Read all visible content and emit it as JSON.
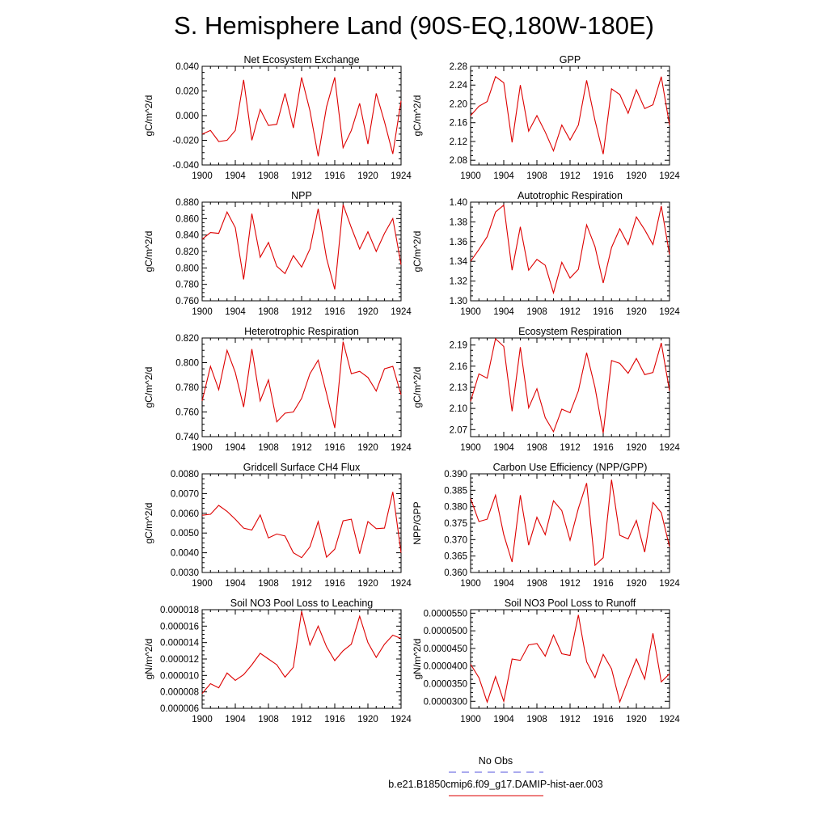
{
  "title": "S. Hemisphere Land (90S-EQ,180W-180E)",
  "x": [
    1900,
    1901,
    1902,
    1903,
    1904,
    1905,
    1906,
    1907,
    1908,
    1909,
    1910,
    1911,
    1912,
    1913,
    1914,
    1915,
    1916,
    1917,
    1918,
    1919,
    1920,
    1921,
    1922,
    1923,
    1924
  ],
  "xticks": [
    "1900",
    "1904",
    "1908",
    "1912",
    "1916",
    "1920",
    "1924"
  ],
  "legend": {
    "entries": [
      {
        "label": "No Obs",
        "color": "#5555dd",
        "dash": "dashed"
      },
      {
        "label": "b.e21.B1850cmip6.f09_g17.DAMIP-hist-aer.003",
        "color": "#dd0000",
        "dash": "solid"
      }
    ]
  },
  "colors": {
    "series": "#dd0000",
    "obs": "#5555dd"
  },
  "chart_data": [
    {
      "type": "line",
      "title": "Net Ecosystem Exchange",
      "ylabel": "gC/m^2/d",
      "xlim": [
        1900,
        1924
      ],
      "ylim": [
        -0.04,
        0.04
      ],
      "yticks": [
        "0.040",
        "0.020",
        "0.000",
        "-0.020",
        "-0.040"
      ],
      "ytick_values": [
        0.04,
        0.02,
        0,
        -0.02,
        -0.04
      ],
      "series": [
        {
          "values": [
            -0.015,
            -0.012,
            -0.021,
            -0.02,
            -0.012,
            0.029,
            -0.02,
            0.005,
            -0.008,
            -0.007,
            0.018,
            -0.01,
            0.031,
            0.004,
            -0.033,
            0.007,
            0.031,
            -0.026,
            -0.012,
            0.01,
            -0.023,
            0.018,
            -0.005,
            -0.031,
            0.012
          ]
        }
      ]
    },
    {
      "type": "line",
      "title": "GPP",
      "ylabel": "gC/m^2/d",
      "xlim": [
        1900,
        1924
      ],
      "ylim": [
        2.07,
        2.28
      ],
      "yticks": [
        "2.28",
        "2.24",
        "2.20",
        "2.16",
        "2.12",
        "2.08"
      ],
      "ytick_values": [
        2.28,
        2.24,
        2.2,
        2.16,
        2.12,
        2.08
      ],
      "series": [
        {
          "values": [
            2.175,
            2.195,
            2.205,
            2.258,
            2.245,
            2.118,
            2.24,
            2.142,
            2.175,
            2.14,
            2.1,
            2.155,
            2.123,
            2.155,
            2.25,
            2.165,
            2.093,
            2.232,
            2.22,
            2.18,
            2.23,
            2.19,
            2.198,
            2.258,
            2.155
          ]
        }
      ]
    },
    {
      "type": "line",
      "title": "NPP",
      "ylabel": "gC/m^2/d",
      "xlim": [
        1900,
        1924
      ],
      "ylim": [
        0.76,
        0.88
      ],
      "yticks": [
        "0.880",
        "0.860",
        "0.840",
        "0.820",
        "0.800",
        "0.780",
        "0.760"
      ],
      "ytick_values": [
        0.88,
        0.86,
        0.84,
        0.82,
        0.8,
        0.78,
        0.76
      ],
      "series": [
        {
          "values": [
            0.835,
            0.843,
            0.842,
            0.868,
            0.849,
            0.786,
            0.866,
            0.813,
            0.831,
            0.802,
            0.793,
            0.815,
            0.801,
            0.823,
            0.872,
            0.812,
            0.774,
            0.877,
            0.849,
            0.823,
            0.844,
            0.82,
            0.842,
            0.86,
            0.804
          ]
        }
      ]
    },
    {
      "type": "line",
      "title": "Autotrophic Respiration",
      "ylabel": "gC/m^2/d",
      "xlim": [
        1900,
        1924
      ],
      "ylim": [
        1.3,
        1.4
      ],
      "yticks": [
        "1.40",
        "1.38",
        "1.36",
        "1.34",
        "1.32",
        "1.30"
      ],
      "ytick_values": [
        1.4,
        1.38,
        1.36,
        1.34,
        1.32,
        1.3
      ],
      "series": [
        {
          "values": [
            1.34,
            1.352,
            1.365,
            1.39,
            1.397,
            1.331,
            1.375,
            1.331,
            1.342,
            1.336,
            1.308,
            1.339,
            1.323,
            1.332,
            1.377,
            1.355,
            1.318,
            1.354,
            1.373,
            1.357,
            1.385,
            1.372,
            1.357,
            1.396,
            1.347
          ]
        }
      ]
    },
    {
      "type": "line",
      "title": "Heterotrophic Respiration",
      "ylabel": "gC/m^2/d",
      "xlim": [
        1900,
        1924
      ],
      "ylim": [
        0.74,
        0.82
      ],
      "yticks": [
        "0.820",
        "0.800",
        "0.780",
        "0.760",
        "0.740"
      ],
      "ytick_values": [
        0.82,
        0.8,
        0.78,
        0.76,
        0.74
      ],
      "series": [
        {
          "values": [
            0.769,
            0.797,
            0.778,
            0.81,
            0.792,
            0.764,
            0.811,
            0.769,
            0.786,
            0.752,
            0.759,
            0.76,
            0.771,
            0.791,
            0.802,
            0.775,
            0.747,
            0.817,
            0.791,
            0.793,
            0.788,
            0.777,
            0.795,
            0.797,
            0.774
          ]
        }
      ]
    },
    {
      "type": "line",
      "title": "Ecosystem Respiration",
      "ylabel": "gC/m^2/d",
      "xlim": [
        1900,
        1924
      ],
      "ylim": [
        2.06,
        2.2
      ],
      "yticks": [
        "2.19",
        "2.16",
        "2.13",
        "2.10",
        "2.07"
      ],
      "ytick_values": [
        2.19,
        2.16,
        2.13,
        2.1,
        2.07
      ],
      "series": [
        {
          "values": [
            2.11,
            2.149,
            2.143,
            2.199,
            2.188,
            2.096,
            2.187,
            2.101,
            2.128,
            2.087,
            2.067,
            2.099,
            2.094,
            2.125,
            2.179,
            2.13,
            2.065,
            2.168,
            2.164,
            2.15,
            2.171,
            2.148,
            2.151,
            2.193,
            2.125
          ]
        }
      ]
    },
    {
      "type": "line",
      "title": "Gridcell Surface CH4 Flux",
      "ylabel": "gC/m^2/d",
      "xlim": [
        1900,
        1924
      ],
      "ylim": [
        0.003,
        0.008
      ],
      "yticks": [
        "0.0080",
        "0.0070",
        "0.0060",
        "0.0050",
        "0.0040",
        "0.0030"
      ],
      "ytick_values": [
        0.008,
        0.007,
        0.006,
        0.005,
        0.004,
        0.003
      ],
      "series": [
        {
          "values": [
            0.0059,
            0.00595,
            0.0064,
            0.0061,
            0.0057,
            0.00525,
            0.00515,
            0.00592,
            0.00475,
            0.00495,
            0.00485,
            0.004,
            0.00375,
            0.0043,
            0.00558,
            0.00378,
            0.00418,
            0.00562,
            0.0057,
            0.00395,
            0.00558,
            0.00522,
            0.00525,
            0.00708,
            0.004
          ]
        }
      ]
    },
    {
      "type": "line",
      "title": "Carbon Use Efficiency (NPP/GPP)",
      "ylabel": "NPP/GPP",
      "xlim": [
        1900,
        1924
      ],
      "ylim": [
        0.36,
        0.39
      ],
      "yticks": [
        "0.390",
        "0.385",
        "0.380",
        "0.375",
        "0.370",
        "0.365",
        "0.360"
      ],
      "ytick_values": [
        0.39,
        0.385,
        0.38,
        0.375,
        0.37,
        0.365,
        0.36
      ],
      "series": [
        {
          "values": [
            0.3825,
            0.3755,
            0.3762,
            0.3835,
            0.3715,
            0.3632,
            0.3835,
            0.3683,
            0.3768,
            0.3715,
            0.3818,
            0.3788,
            0.3698,
            0.3795,
            0.3872,
            0.3622,
            0.3645,
            0.3882,
            0.3713,
            0.3702,
            0.3758,
            0.3662,
            0.3813,
            0.3782,
            0.3678
          ]
        }
      ]
    },
    {
      "type": "line",
      "title": "Soil NO3 Pool Loss to Leaching",
      "ylabel": "gN/m^2/d",
      "xlim": [
        1900,
        1924
      ],
      "ylim": [
        6e-06,
        1.8e-05
      ],
      "yticks": [
        "0.000018",
        "0.000016",
        "0.000014",
        "0.000012",
        "0.000010",
        "0.000008",
        "0.000006"
      ],
      "ytick_values": [
        1.8e-05,
        1.6e-05,
        1.4e-05,
        1.2e-05,
        1e-05,
        8e-06,
        6e-06
      ],
      "series": [
        {
          "values": [
            7.8e-06,
            9e-06,
            8.5e-06,
            1.03e-05,
            9.4e-06,
            1.01e-05,
            1.13e-05,
            1.27e-05,
            1.2e-05,
            1.13e-05,
            9.8e-06,
            1.1e-05,
            1.78e-05,
            1.37e-05,
            1.6e-05,
            1.35e-05,
            1.18e-05,
            1.3e-05,
            1.38e-05,
            1.72e-05,
            1.4e-05,
            1.22e-05,
            1.38e-05,
            1.49e-05,
            1.45e-05
          ]
        }
      ]
    },
    {
      "type": "line",
      "title": "Soil NO3 Pool Loss to Runoff",
      "ylabel": "gN/m^2/d",
      "xlim": [
        1900,
        1924
      ],
      "ylim": [
        2.8e-05,
        5.6e-05
      ],
      "yticks": [
        "0.0000550",
        "0.0000500",
        "0.0000450",
        "0.0000400",
        "0.0000350",
        "0.0000300"
      ],
      "ytick_values": [
        5.5e-05,
        5e-05,
        4.5e-05,
        4e-05,
        3.5e-05,
        3e-05
      ],
      "series": [
        {
          "values": [
            4.05e-05,
            3.67e-05,
            2.98e-05,
            3.7e-05,
            3e-05,
            4.2e-05,
            4.16e-05,
            4.6e-05,
            4.64e-05,
            4.28e-05,
            4.88e-05,
            4.35e-05,
            4.3e-05,
            5.45e-05,
            4.12e-05,
            3.67e-05,
            4.33e-05,
            3.92e-05,
            2.98e-05,
            3.6e-05,
            4.2e-05,
            3.63e-05,
            4.93e-05,
            3.55e-05,
            3.78e-05
          ]
        }
      ]
    }
  ]
}
